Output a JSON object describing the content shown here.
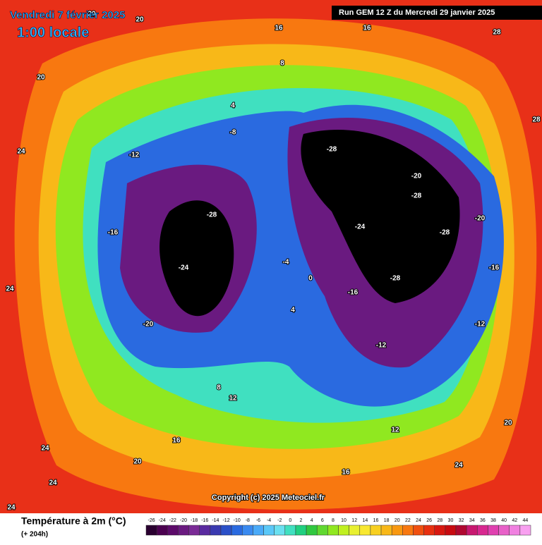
{
  "header": {
    "date": "Vendredi 7 février 2025",
    "time": "1:00 locale",
    "run": "Run GEM 12 Z du Mercredi 29 janvier 2025"
  },
  "copyright": "Copyright (c) 2025 Meteociel.fr",
  "legend": {
    "title": "Température à 2m (°C)",
    "lead": "(+ 204h)",
    "values": [
      -26,
      -24,
      -22,
      -20,
      -18,
      -16,
      -14,
      -12,
      -10,
      -8,
      -6,
      -4,
      -2,
      0,
      2,
      4,
      6,
      8,
      10,
      12,
      14,
      16,
      18,
      20,
      22,
      24,
      26,
      28,
      30,
      32,
      34,
      36,
      38,
      40,
      42,
      44
    ],
    "colors": [
      "#2a0030",
      "#4b0050",
      "#5c0a6a",
      "#6a1a80",
      "#7a2a96",
      "#5a2aa0",
      "#3a3ab0",
      "#2a50c8",
      "#2a6ae0",
      "#3a8af0",
      "#4aaaf8",
      "#5ac8f8",
      "#6ae0f0",
      "#40e0c0",
      "#20d080",
      "#30c840",
      "#60d830",
      "#90e820",
      "#c0f020",
      "#e8f030",
      "#f8e830",
      "#f8d020",
      "#f8b818",
      "#f89810",
      "#f87810",
      "#f05010",
      "#e83010",
      "#d81810",
      "#c80a10",
      "#b00830",
      "#c81870",
      "#d82890",
      "#e040b0",
      "#e860c8",
      "#f080e0",
      "#f8a0f0"
    ]
  },
  "map": {
    "labels": [
      "20",
      "20",
      "16",
      "16",
      "24",
      "28",
      "28",
      "20",
      "24",
      "24",
      "8",
      "4",
      "-8",
      "-12",
      "-16",
      "-20",
      "-24",
      "-28",
      "-28",
      "-28",
      "-24",
      "-20",
      "-16",
      "-12",
      "-28",
      "-28",
      "-20",
      "-16",
      "-12",
      "-4",
      "0",
      "4",
      "8",
      "12",
      "16",
      "20",
      "24",
      "24",
      "12",
      "16",
      "20",
      "24"
    ]
  }
}
